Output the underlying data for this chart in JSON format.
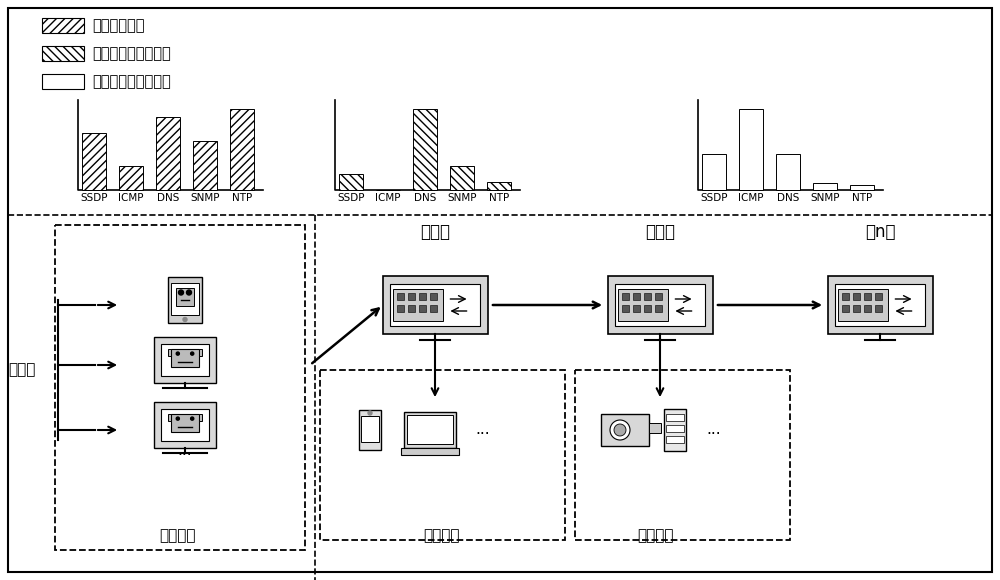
{
  "legend_labels": [
    "恶意流量分布",
    "第一跳合法流量分布",
    "第二跳合法流量分布"
  ],
  "categories": [
    "SSDP",
    "ICMP",
    "DNS",
    "SNMP",
    "NTP"
  ],
  "chart1_values": [
    3.5,
    1.5,
    4.5,
    3.0,
    5.0
  ],
  "chart2_values": [
    1.0,
    0.0,
    5.0,
    1.5,
    0.5
  ],
  "chart3_values": [
    2.0,
    4.5,
    2.0,
    0.4,
    0.3
  ],
  "bg_color": "#ffffff",
  "text_color": "#000000",
  "attacker_label": "攻击者",
  "zombie_label": "僵尸网络",
  "hop1_label": "第一跳",
  "hop2_label": "第二跳",
  "hopn_label": "第n跳",
  "legal1_label": "合法流量",
  "legal2_label": "合法流量",
  "dots": "...",
  "legend_hatch1": "////",
  "legend_hatch2": "\\\\\\\\",
  "legend_hatch3": "===",
  "chart1_hatch": "////",
  "chart2_hatch": "\\\\\\\\",
  "chart3_hatch": "==="
}
